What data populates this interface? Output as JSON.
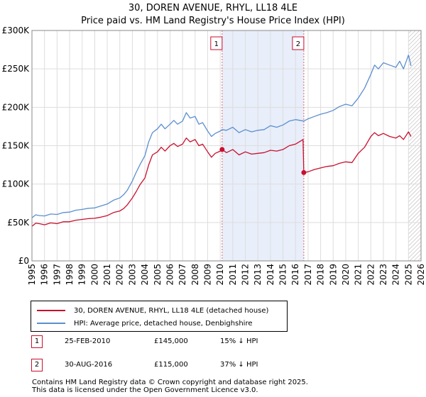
{
  "chart_data": {
    "type": "line",
    "title": "30, DOREN AVENUE, RHYL, LL18 4LE",
    "subtitle": "Price paid vs. HM Land Registry's House Price Index (HPI)",
    "xlabel": "",
    "ylabel": "",
    "xlim": [
      1995,
      2026
    ],
    "ylim": [
      0,
      300000
    ],
    "grid": true,
    "y_ticks": [
      0,
      50000,
      100000,
      150000,
      200000,
      250000,
      300000
    ],
    "y_tick_labels": [
      "£0",
      "£50K",
      "£100K",
      "£150K",
      "£200K",
      "£250K",
      "£300K"
    ],
    "x_ticks": [
      1995,
      1996,
      1997,
      1998,
      1999,
      2000,
      2001,
      2002,
      2003,
      2004,
      2005,
      2006,
      2007,
      2008,
      2009,
      2010,
      2011,
      2012,
      2013,
      2014,
      2015,
      2016,
      2017,
      2018,
      2019,
      2020,
      2021,
      2022,
      2023,
      2024,
      2025,
      2026
    ],
    "x_tick_labels": [
      "1995",
      "1996",
      "1997",
      "1998",
      "1999",
      "2000",
      "2001",
      "2002",
      "2003",
      "2004",
      "2005",
      "2006",
      "2007",
      "2008",
      "2009",
      "2010",
      "2011",
      "2012",
      "2013",
      "2014",
      "2015",
      "2016",
      "2017",
      "2018",
      "2019",
      "2020",
      "2021",
      "2022",
      "2023",
      "2024",
      "2025",
      "2026"
    ],
    "shaded_region": [
      2010.15,
      2016.66
    ],
    "hatched_region_start": 2025.0,
    "series": [
      {
        "name": "30, DOREN AVENUE, RHYL, LL18 4LE (detached house)",
        "color": "#c8102e",
        "x": [
          1995.0,
          1995.3,
          1995.6,
          1996.0,
          1996.5,
          1997.0,
          1997.5,
          1998.0,
          1998.5,
          1999.0,
          1999.5,
          2000.0,
          2000.5,
          2001.0,
          2001.5,
          2002.0,
          2002.3,
          2002.6,
          2003.0,
          2003.3,
          2003.6,
          2004.0,
          2004.3,
          2004.6,
          2005.0,
          2005.3,
          2005.6,
          2006.0,
          2006.3,
          2006.6,
          2007.0,
          2007.3,
          2007.6,
          2008.0,
          2008.3,
          2008.6,
          2009.0,
          2009.3,
          2009.6,
          2010.0,
          2010.15,
          2010.5,
          2011.0,
          2011.5,
          2012.0,
          2012.5,
          2013.0,
          2013.5,
          2014.0,
          2014.5,
          2015.0,
          2015.5,
          2016.0,
          2016.6,
          2016.66,
          2017.0,
          2017.5,
          2018.0,
          2018.5,
          2019.0,
          2019.5,
          2020.0,
          2020.5,
          2021.0,
          2021.5,
          2022.0,
          2022.3,
          2022.6,
          2023.0,
          2023.5,
          2024.0,
          2024.3,
          2024.6,
          2025.0,
          2025.2
        ],
        "values": [
          45000,
          49000,
          48500,
          47000,
          49500,
          48500,
          51000,
          51000,
          53000,
          54000,
          55000,
          55500,
          57000,
          59000,
          63000,
          65000,
          68000,
          73000,
          82000,
          90000,
          99000,
          108000,
          125000,
          138000,
          142000,
          148000,
          143000,
          150000,
          153000,
          149000,
          152000,
          160000,
          155000,
          158000,
          150000,
          152000,
          142000,
          135000,
          140000,
          143000,
          145000,
          141000,
          145000,
          138000,
          142000,
          139000,
          140000,
          141000,
          144000,
          143000,
          145000,
          150000,
          152000,
          158000,
          115000,
          116000,
          119000,
          121000,
          123000,
          124000,
          127000,
          129000,
          128000,
          140000,
          148000,
          162000,
          167000,
          163000,
          166000,
          162000,
          160000,
          163000,
          158000,
          168000,
          162000
        ]
      },
      {
        "name": "HPI: Average price, detached house, Denbighshire",
        "color": "#5b8fd0",
        "x": [
          1995.0,
          1995.3,
          1995.6,
          1996.0,
          1996.5,
          1997.0,
          1997.5,
          1998.0,
          1998.5,
          1999.0,
          1999.5,
          2000.0,
          2000.5,
          2001.0,
          2001.5,
          2002.0,
          2002.3,
          2002.6,
          2003.0,
          2003.3,
          2003.6,
          2004.0,
          2004.3,
          2004.6,
          2005.0,
          2005.3,
          2005.6,
          2006.0,
          2006.3,
          2006.6,
          2007.0,
          2007.3,
          2007.6,
          2008.0,
          2008.3,
          2008.6,
          2009.0,
          2009.3,
          2009.6,
          2010.0,
          2010.15,
          2010.5,
          2011.0,
          2011.5,
          2012.0,
          2012.5,
          2013.0,
          2013.5,
          2014.0,
          2014.5,
          2015.0,
          2015.5,
          2016.0,
          2016.66,
          2017.0,
          2017.5,
          2018.0,
          2018.5,
          2019.0,
          2019.5,
          2020.0,
          2020.5,
          2021.0,
          2021.5,
          2022.0,
          2022.3,
          2022.6,
          2023.0,
          2023.5,
          2024.0,
          2024.3,
          2024.6,
          2025.0,
          2025.2
        ],
        "values": [
          56000,
          60000,
          59000,
          58500,
          61000,
          60500,
          63000,
          63500,
          66000,
          67000,
          68500,
          69000,
          71500,
          74000,
          79000,
          82000,
          86000,
          92000,
          104000,
          115000,
          125000,
          137000,
          155000,
          167000,
          172000,
          178000,
          172000,
          178000,
          183000,
          178000,
          182000,
          193000,
          186000,
          188000,
          178000,
          180000,
          169000,
          162000,
          166000,
          169000,
          171000,
          170000,
          174000,
          167000,
          171000,
          168000,
          170000,
          171000,
          176000,
          174000,
          177000,
          182000,
          184000,
          182000,
          185000,
          188000,
          191000,
          193000,
          196000,
          201000,
          204000,
          202000,
          212000,
          225000,
          243000,
          255000,
          250000,
          258000,
          255000,
          252000,
          260000,
          250000,
          268000,
          254000
        ]
      }
    ],
    "markers": [
      {
        "label": "1",
        "x": 2010.15,
        "y": 145000
      },
      {
        "label": "2",
        "x": 2016.66,
        "y": 115000
      }
    ]
  },
  "legend": {
    "red_label": "30, DOREN AVENUE, RHYL, LL18 4LE (detached house)",
    "blue_label": "HPI: Average price, detached house, Denbighshire"
  },
  "sales": [
    {
      "num": "1",
      "date": "25-FEB-2010",
      "price": "£145,000",
      "hpi": "15% ↓ HPI"
    },
    {
      "num": "2",
      "date": "30-AUG-2016",
      "price": "£115,000",
      "hpi": "37% ↓ HPI"
    }
  ],
  "footer": {
    "line1": "Contains HM Land Registry data © Crown copyright and database right 2025.",
    "line2": "This data is licensed under the Open Government Licence v3.0."
  },
  "colors": {
    "property_line": "#c8102e",
    "hpi_line": "#5b8fd0",
    "shade": "#e8eefa",
    "grid": "#dddddd"
  }
}
